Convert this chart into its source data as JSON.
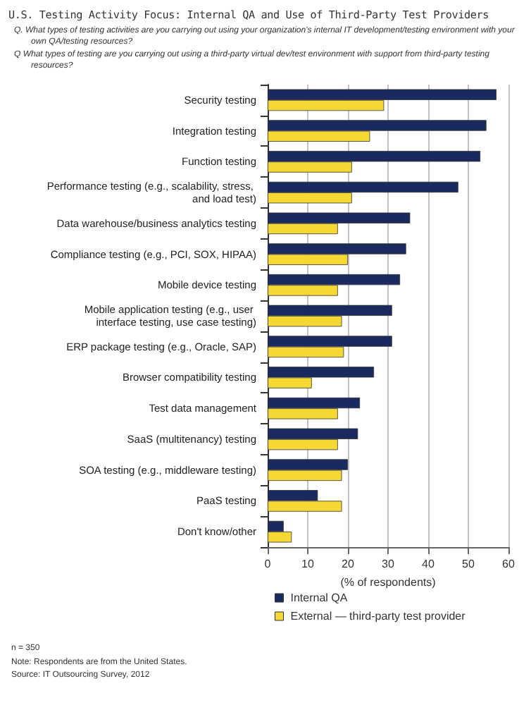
{
  "chart_data": {
    "type": "bar",
    "orientation": "horizontal",
    "title": "U.S. Testing Activity Focus: Internal QA and Use of Third-Party Test Providers",
    "subtitle": "Q.  What types of testing activities are you carrying out using your organization's internal IT development/testing environment with your own QA/testing resources?\nQ   What types of testing are you carrying out using a third-party virtual dev/test environment with support from third-party testing resources?",
    "categories": [
      "Security testing",
      "Integration testing",
      "Function testing",
      "Performance testing (e.g., scalability, stress, and load test)",
      "Data warehouse/business analytics testing",
      "Compliance testing (e.g., PCI, SOX, HIPAA)",
      "Mobile device testing",
      "Mobile application testing (e.g., user interface testing, use case testing)",
      "ERP package testing (e.g., Oracle, SAP)",
      "Browser compatibility testing",
      "Test data management",
      "SaaS (multitenancy) testing",
      "SOA testing (e.g., middleware testing)",
      "PaaS testing",
      "Don't know/other"
    ],
    "series": [
      {
        "name": "Internal QA",
        "color": "#1b2a5e",
        "values": [
          57,
          54.5,
          53,
          47.5,
          35.5,
          34.5,
          33,
          31,
          31,
          26.5,
          23,
          22.5,
          20,
          12.5,
          4
        ]
      },
      {
        "name": "External — third-party test provider",
        "color": "#f5d833",
        "values": [
          29,
          25.5,
          21,
          21,
          17.5,
          20,
          17.5,
          18.5,
          19,
          11,
          17.5,
          17.5,
          18.5,
          18.5,
          6
        ]
      }
    ],
    "xlabel": "(% of respondents)",
    "xlim": [
      0,
      60
    ],
    "xticks": [
      0,
      10,
      20,
      30,
      40,
      50,
      60
    ],
    "grid": "x",
    "legend": "bottom",
    "annotations": [
      "n = 350",
      "Note: Respondents are from the United States.",
      "Source: IT Outsourcing Survey, 2012"
    ]
  }
}
